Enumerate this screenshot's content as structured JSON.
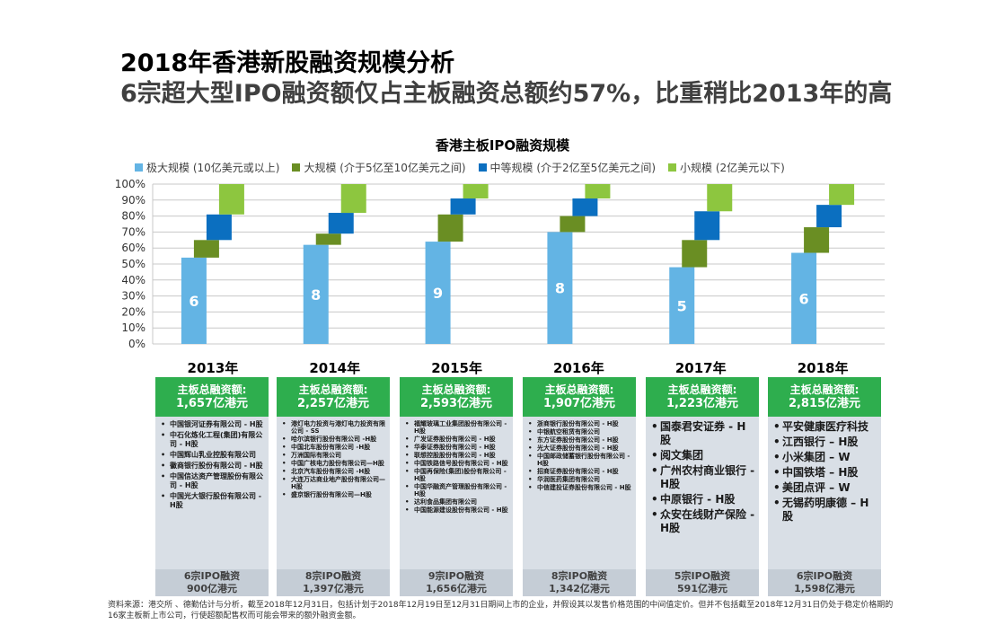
{
  "header": {
    "title": "2018年香港新股融资规模分析",
    "subtitle": "6宗超大型IPO融资额仅占主板融资总额约57%，比重稍比2013年的高"
  },
  "colors": {
    "very_large": "#63b4e4",
    "large": "#6a8e23",
    "medium": "#0b6fc0",
    "small": "#8dc63f",
    "green_header": "#2eae4e"
  },
  "chart_data": {
    "type": "bar",
    "title": "香港主板IPO融资规模",
    "subtype": "stacked-waterfall",
    "categories": [
      "2013年",
      "2014年",
      "2015年",
      "2016年",
      "2017年",
      "2018年"
    ],
    "series": [
      {
        "name": "极大规模 (10亿美元或以上)",
        "values": [
          54,
          62,
          64,
          70,
          48,
          57
        ]
      },
      {
        "name": "大规模 (介于5亿至10亿美元之间)",
        "values": [
          11,
          7,
          17,
          10,
          17,
          16
        ]
      },
      {
        "name": "中等规模 (介于2亿至5亿美元之间)",
        "values": [
          16,
          13,
          10,
          11,
          18,
          14
        ]
      },
      {
        "name": "小规模 (2亿美元以下)",
        "values": [
          19,
          18,
          9,
          9,
          17,
          13
        ]
      }
    ],
    "bar_labels": [
      "6",
      "8",
      "9",
      "8",
      "5",
      "6"
    ],
    "ylim": [
      0,
      100
    ],
    "yticks": [
      "0%",
      "10%",
      "20%",
      "30%",
      "40%",
      "50%",
      "60%",
      "70%",
      "80%",
      "90%",
      "100%"
    ],
    "grid": true,
    "legend": "top"
  },
  "years": [
    {
      "label": "2013年",
      "head_line1": "主板总融资额:",
      "head_line2": "1,657亿港元",
      "companies": [
        "中国银河证券有限公司 - H股",
        "中石化炼化工程(集团)有限公司 - H股",
        "中国辉山乳业控股有限公司",
        "徽商银行股份有限公司 - H股",
        "中国信达资产管理股份有限公司 - H股",
        "中国光大银行股份有限公司 - H股"
      ],
      "foot_line1": "6宗IPO融资",
      "foot_line2": "900亿港元"
    },
    {
      "label": "2014年",
      "head_line1": "主板总融资额:",
      "head_line2": "2,257亿港元",
      "companies": [
        "港灯电力投资与港灯电力投资有限公司 - SS",
        "哈尔滨银行股份有限公司 -H股",
        "中国北车股份有限公司 -H股",
        "万洲国际有限公司",
        "中国广核电力股份有限公司—H股",
        "北京汽车股份有限公司 -H股",
        "大连万达商业地产股份有限公司—H股",
        "盛京银行股份有限公司—H股"
      ],
      "foot_line1": "8宗IPO融资",
      "foot_line2": "1,397亿港元"
    },
    {
      "label": "2015年",
      "head_line1": "主板总融资额:",
      "head_line2": "2,593亿港元",
      "companies": [
        "福耀玻璃工业集团股份有限公司 - H股",
        "广发证券股份有限公司 - H股",
        "华泰证券股份有限公司 - H股",
        "联想控股股份有限公司 - H股",
        "中国铁路信号股份有限公司 - H股",
        "中国再保险(集团)股份有限公司 - H股",
        "中国华融资产管理股份有限公司 - H股",
        "达利食品集团有限公司",
        "中国能源建设股份有限公司 - H股"
      ],
      "foot_line1": "9宗IPO融资",
      "foot_line2": "1,656亿港元"
    },
    {
      "label": "2016年",
      "head_line1": "主板总融资额:",
      "head_line2": "1,907亿港元",
      "companies": [
        "浙商银行股份有限公司 - H股",
        "中银航空租赁有限公司",
        "东方证券股份有限公司 - H股",
        "光大证券股份有限公司 - H股",
        "中国邮政储蓄银行股份有限公司 - H股",
        "招商证券股份有限公司 - H股",
        "华润医药集团有限公司",
        "中信建投证券股份有限公司 - H股"
      ],
      "foot_line1": "8宗IPO融资",
      "foot_line2": "1,342亿港元"
    },
    {
      "label": "2017年",
      "head_line1": "主板总融资额:",
      "head_line2": "1,223亿港元",
      "companies": [
        "国泰君安证券 - H股",
        "阅文集团",
        "广州农村商业银行 - H股",
        "中原银行 - H股",
        "众安在线财产保险 - H股"
      ],
      "foot_line1": "5宗IPO融资",
      "foot_line2": "591亿港元"
    },
    {
      "label": "2018年",
      "head_line1": "主板总融资额:",
      "head_line2": "2,815亿港元",
      "companies": [
        "平安健康医疗科技",
        "江西银行 – H股",
        "小米集团 – W",
        "中国铁塔 – H股",
        "美团点评 – W",
        "无锡药明康德 – H股"
      ],
      "foot_line1": "6宗IPO融资",
      "foot_line2": "1,598亿港元"
    }
  ],
  "source": "资料来源：港交所 、德勤估计与分析，截至2018年12月31日，包括计划于2018年12月19日至12月31日期间上市的企业，并假设其以发售价格范围的中间值定价。但并不包括截至2018年12月31日仍处于稳定价格期的16家主板新上市公司，行使超额配售权而可能会带来的额外融资金额。"
}
